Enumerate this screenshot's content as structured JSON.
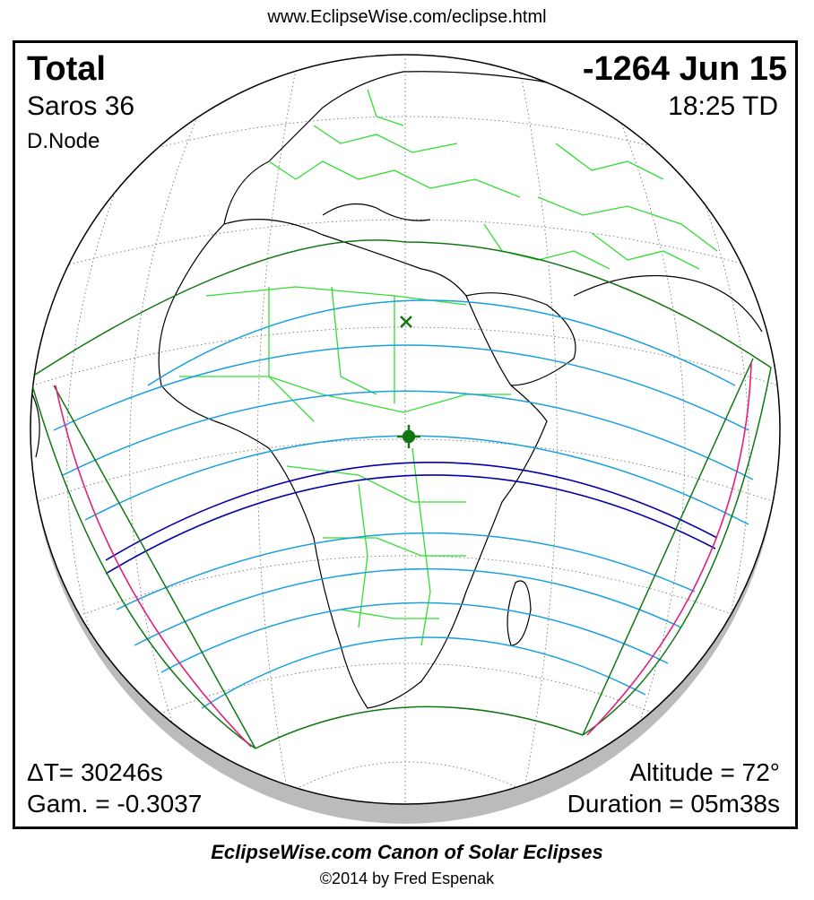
{
  "header": {
    "url": "www.EclipseWise.com/eclipse.html"
  },
  "eclipse": {
    "type": "Total",
    "date": "-1264 Jun 15",
    "saros": "Saros  36",
    "time": "18:25 TD",
    "node": "D.Node",
    "delta_t": "ΔT=  30246s",
    "gamma": "Gam. = -0.3037",
    "altitude": "Altitude = 72°",
    "duration": "Duration = 05m38s"
  },
  "footer": {
    "title": "EclipseWise.com Canon of Solar Eclipses",
    "copyright": "©2014 by Fred Espenak"
  },
  "colors": {
    "coast": "#000000",
    "borders": "#33dd33",
    "grid": "#555555",
    "penumbra_limits": "#117711",
    "magnitude_lines": "#1a9fe0",
    "central_path": "#0000aa",
    "rise_set_curves": "#e0207a",
    "night_shadow": "#bbbbbb",
    "greatest_eclipse_marker": "#117711"
  },
  "icons": {
    "greatest_eclipse": "star-marker-icon",
    "greatest_duration": "x-marker-icon"
  }
}
